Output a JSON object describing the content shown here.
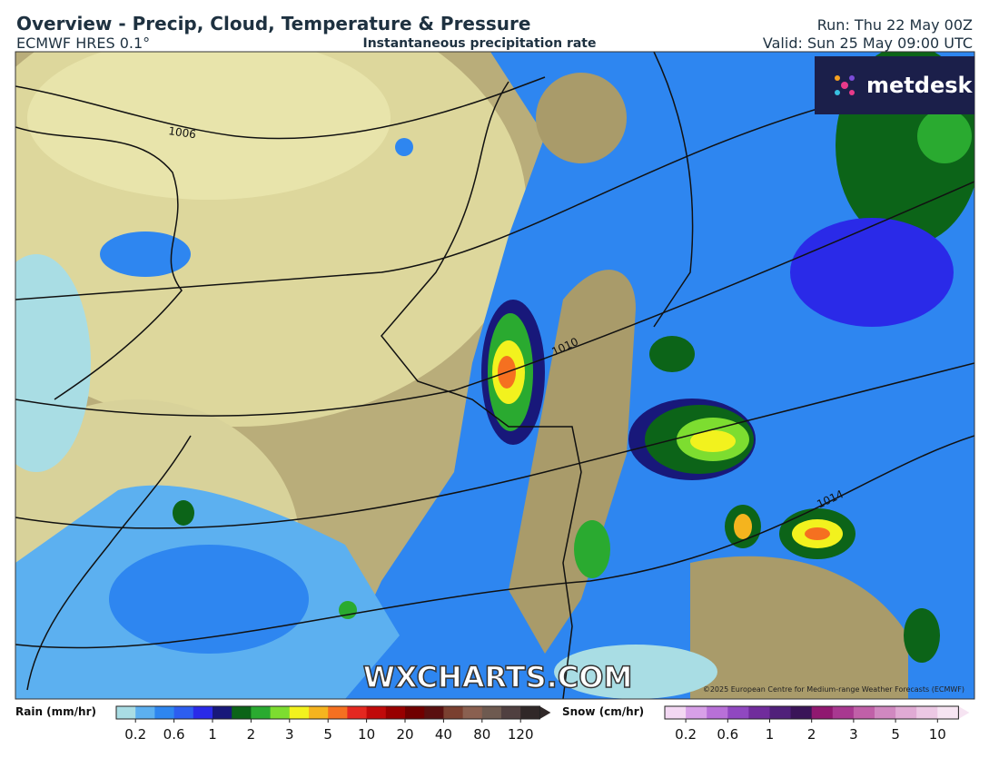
{
  "header": {
    "title": "Overview - Precip, Cloud, Temperature & Pressure",
    "model": "ECMWF HRES 0.1°",
    "field": "Instantaneous precipitation rate",
    "run": "Run: Thu 22 May 00Z",
    "valid": "Valid: Sun 25 May 09:00 UTC"
  },
  "map": {
    "isobars": [
      "1006",
      "1010",
      "1014"
    ],
    "logo": "metdesk",
    "watermark": "WXCHARTS.COM",
    "copyright": "©2025 European Centre for Medium-range Weather Forecasts (ECMWF)"
  },
  "legend": {
    "rain": {
      "title": "Rain (mm/hr)",
      "ticks": [
        0.2,
        0.6,
        1,
        2,
        3,
        5,
        10,
        20,
        40,
        80,
        120
      ],
      "colors": [
        "#a9dde4",
        "#5cb0f0",
        "#2e86f0",
        "#2d5ef0",
        "#2a2ae8",
        "#18187a",
        "#0c6418",
        "#2aaa30",
        "#7ddd30",
        "#f2f21e",
        "#f5b41e",
        "#f57020",
        "#e42820",
        "#c00a0a",
        "#980000",
        "#700000",
        "#5a1010",
        "#7a4030",
        "#8a6050",
        "#6e5a50",
        "#504040",
        "#302828"
      ]
    },
    "snow": {
      "title": "Snow (cm/hr)",
      "ticks": [
        0.2,
        0.6,
        1,
        2,
        3,
        5,
        10
      ],
      "colors": [
        "#f3d8f3",
        "#d8a0e8",
        "#b870d8",
        "#9048c0",
        "#702c9c",
        "#50207a",
        "#3a1458",
        "#901870",
        "#a83890",
        "#c060a8",
        "#d088c0",
        "#e0aad4",
        "#ecc8e4",
        "#f6e4f2"
      ]
    }
  }
}
